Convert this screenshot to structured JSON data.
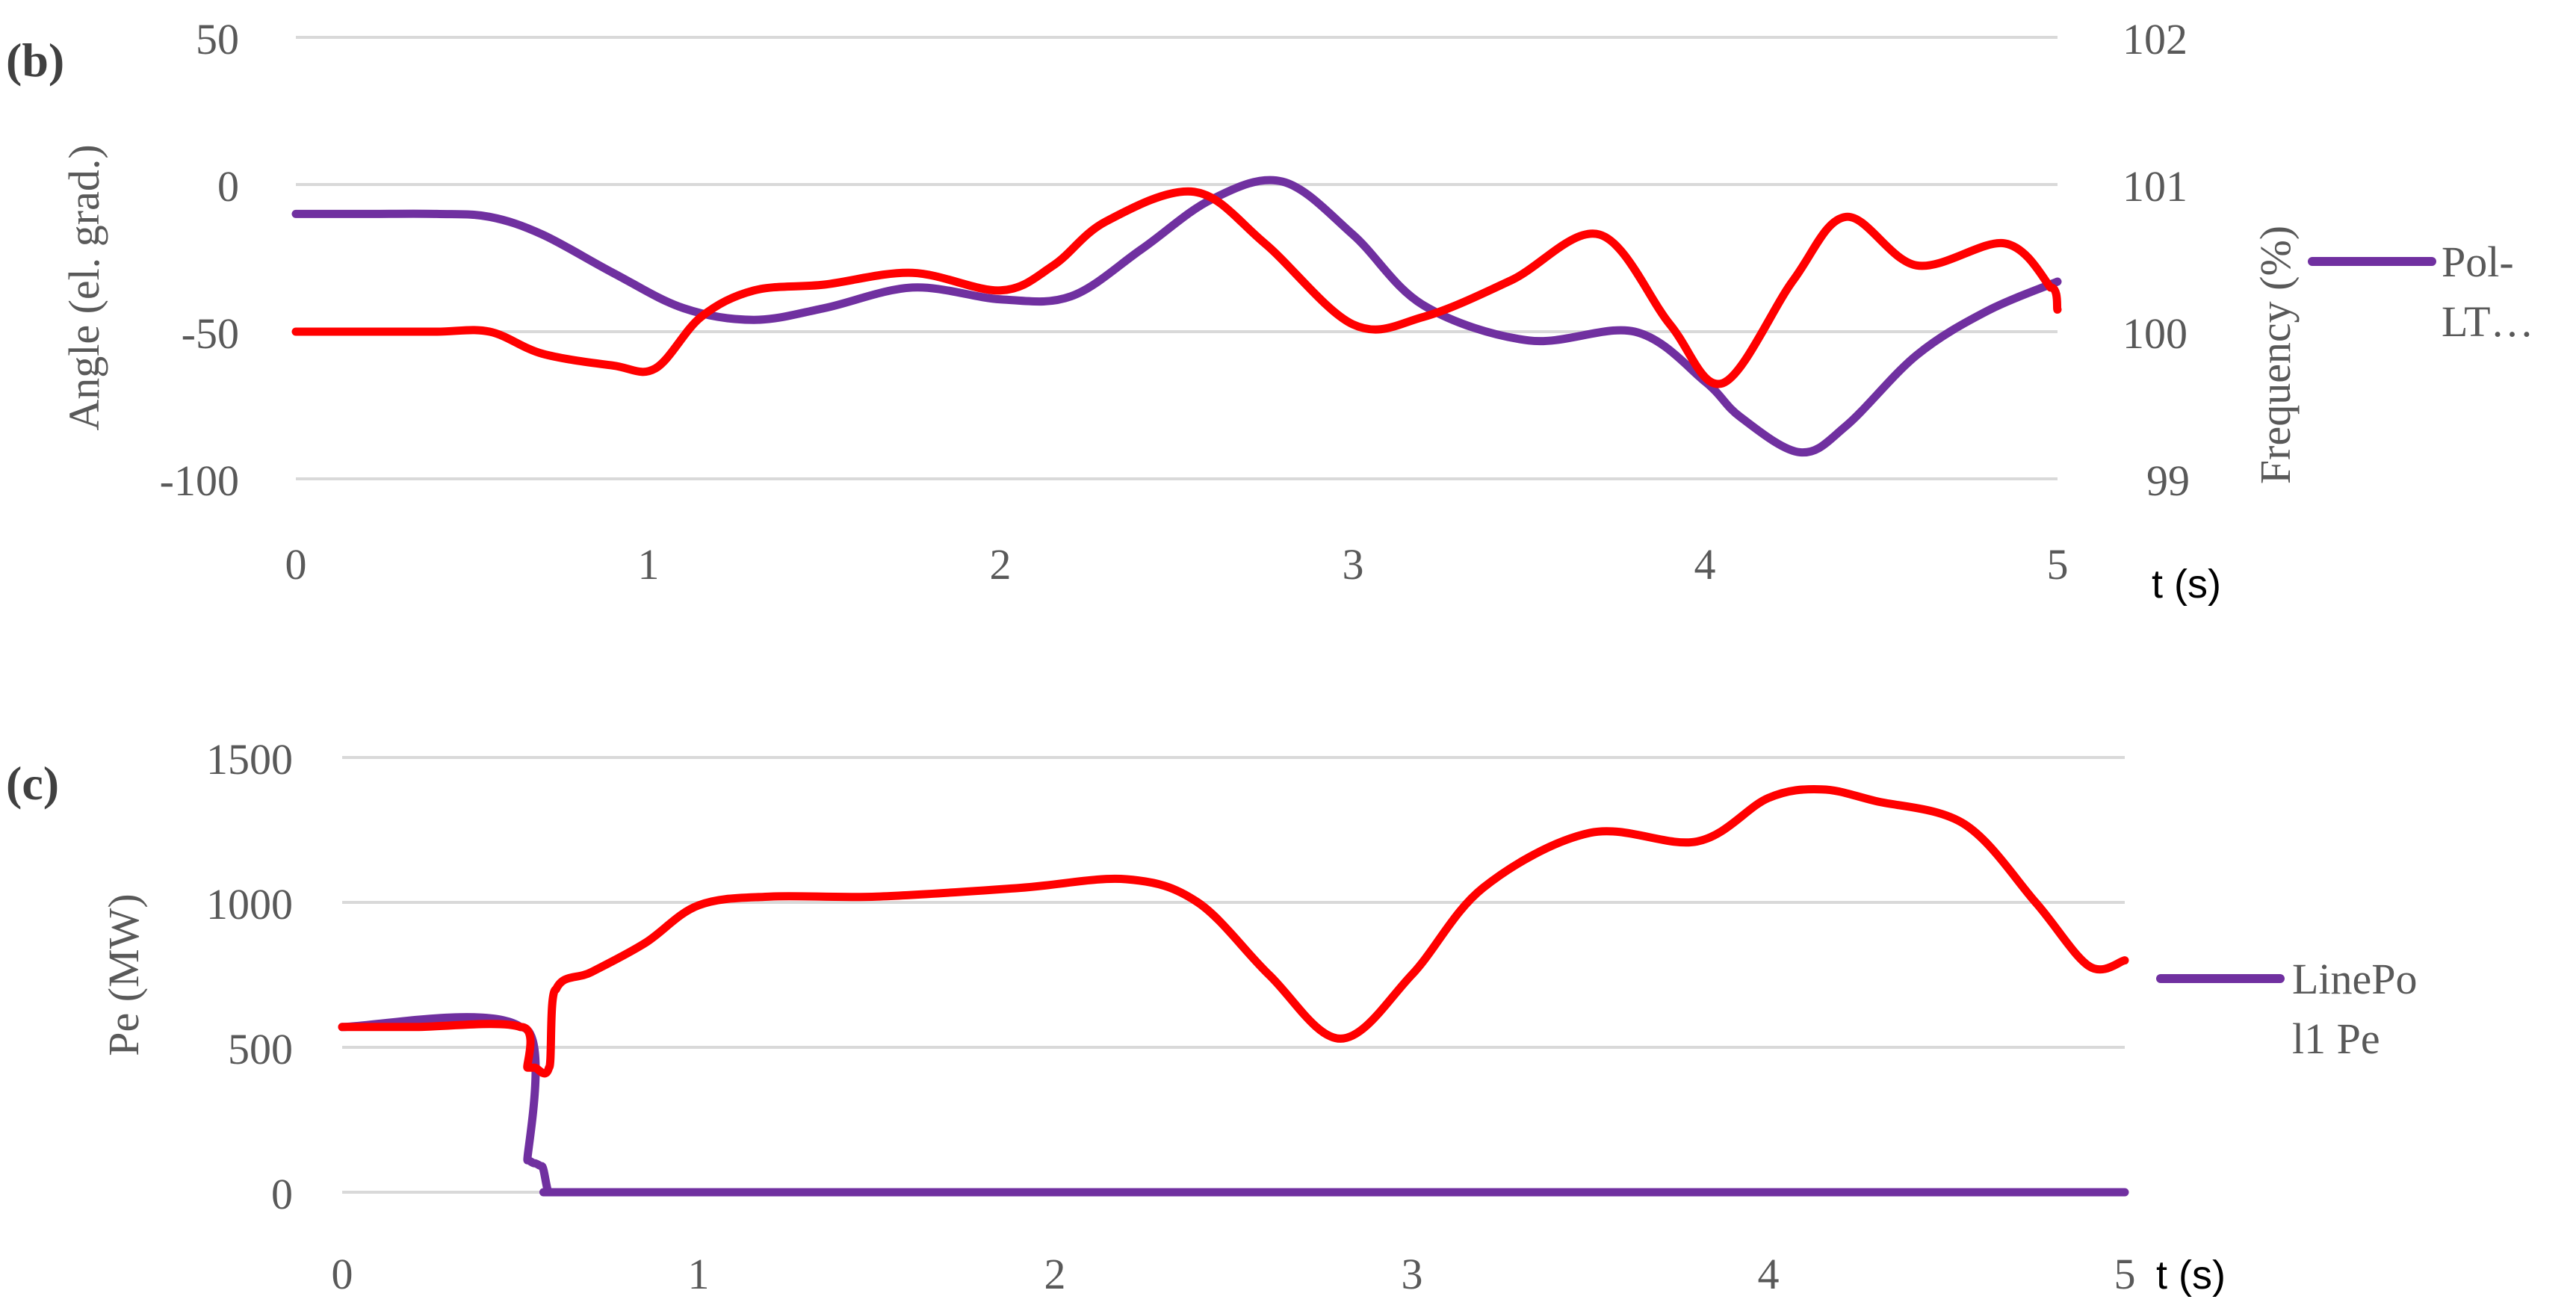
{
  "colors": {
    "purple": "#7030a0",
    "red": "#ff0000",
    "grid": "#d9d9d9",
    "tick_text": "#595959"
  },
  "chart_data": [
    {
      "type": "line",
      "panel_label": "(b)",
      "xlabel": "t (s)",
      "ylabel": "Angle (el. grad.)",
      "y2label": "Frequency (%)",
      "xlim": [
        0,
        5
      ],
      "ylim": [
        -100,
        50
      ],
      "y2lim": [
        99,
        102
      ],
      "x_ticks": [
        "0",
        "1",
        "2",
        "3",
        "4",
        "5"
      ],
      "y_ticks": [
        "50",
        "0",
        "-50",
        "-100"
      ],
      "y2_ticks": [
        "102",
        "101",
        "100",
        "99"
      ],
      "grid": true,
      "legend_position": "right",
      "legend": [
        "Pol-\nLT…"
      ],
      "series": [
        {
          "name": "Pol-LT…",
          "axis": "left",
          "color": "#7030a0",
          "x": [
            0,
            0.2,
            0.4,
            0.55,
            0.7,
            0.9,
            1.1,
            1.3,
            1.5,
            1.75,
            2.0,
            2.2,
            2.4,
            2.6,
            2.8,
            3.0,
            3.2,
            3.5,
            3.8,
            4.0,
            4.1,
            4.27,
            4.4,
            4.6,
            4.8,
            5.0
          ],
          "y": [
            -10,
            -10,
            -10,
            -11,
            -17,
            -30,
            -42,
            -46,
            -42,
            -35,
            -39,
            -38,
            -22,
            -5,
            1,
            -17,
            -41,
            -53,
            -50,
            -67,
            -79,
            -91,
            -82,
            -58,
            -43,
            -33
          ]
        },
        {
          "name": "",
          "axis": "right",
          "color": "#ff0000",
          "x": [
            0,
            0.2,
            0.4,
            0.55,
            0.7,
            0.9,
            1.02,
            1.15,
            1.3,
            1.5,
            1.75,
            2.0,
            2.15,
            2.3,
            2.55,
            2.75,
            3.0,
            3.2,
            3.45,
            3.7,
            3.9,
            4.05,
            4.25,
            4.4,
            4.6,
            4.85,
            4.98,
            5.0
          ],
          "y": [
            100.0,
            100.0,
            100.0,
            100.0,
            99.85,
            99.77,
            99.75,
            100.1,
            100.28,
            100.32,
            100.4,
            100.28,
            100.45,
            100.75,
            100.95,
            100.6,
            100.05,
            100.1,
            100.35,
            100.66,
            100.05,
            99.65,
            100.35,
            100.78,
            100.45,
            100.6,
            100.3,
            100.15
          ]
        }
      ]
    },
    {
      "type": "line",
      "panel_label": "(c)",
      "xlabel": "t (s)",
      "ylabel": "Pe (MW)",
      "xlim": [
        0,
        5
      ],
      "ylim": [
        0,
        1500
      ],
      "x_ticks": [
        "0",
        "1",
        "2",
        "3",
        "4",
        "5"
      ],
      "y_ticks": [
        "1500",
        "1000",
        "500",
        "0"
      ],
      "grid": true,
      "legend_position": "right",
      "legend": [
        "LinePo\nl1 Pe"
      ],
      "series": [
        {
          "name": "LinePo l1 Pe",
          "color": "#7030a0",
          "x": [
            0,
            0.5,
            0.52,
            0.54,
            0.56,
            0.58,
            0.6,
            1,
            2,
            3,
            4,
            5
          ],
          "y": [
            570,
            570,
            110,
            100,
            90,
            0,
            0,
            0,
            0,
            0,
            0,
            0
          ]
        },
        {
          "name": "",
          "color": "#ff0000",
          "x": [
            0,
            0.2,
            0.5,
            0.52,
            0.54,
            0.58,
            0.6,
            0.7,
            0.85,
            1.0,
            1.2,
            1.5,
            1.9,
            2.2,
            2.4,
            2.6,
            2.8,
            3.0,
            3.2,
            3.5,
            3.8,
            4.0,
            4.15,
            4.3,
            4.55,
            4.75,
            4.9,
            5.0
          ],
          "y": [
            570,
            570,
            570,
            430,
            430,
            430,
            700,
            760,
            860,
            990,
            1020,
            1020,
            1050,
            1080,
            1000,
            750,
            530,
            750,
            1050,
            1240,
            1210,
            1360,
            1390,
            1350,
            1270,
            1000,
            780,
            800
          ]
        }
      ]
    }
  ]
}
